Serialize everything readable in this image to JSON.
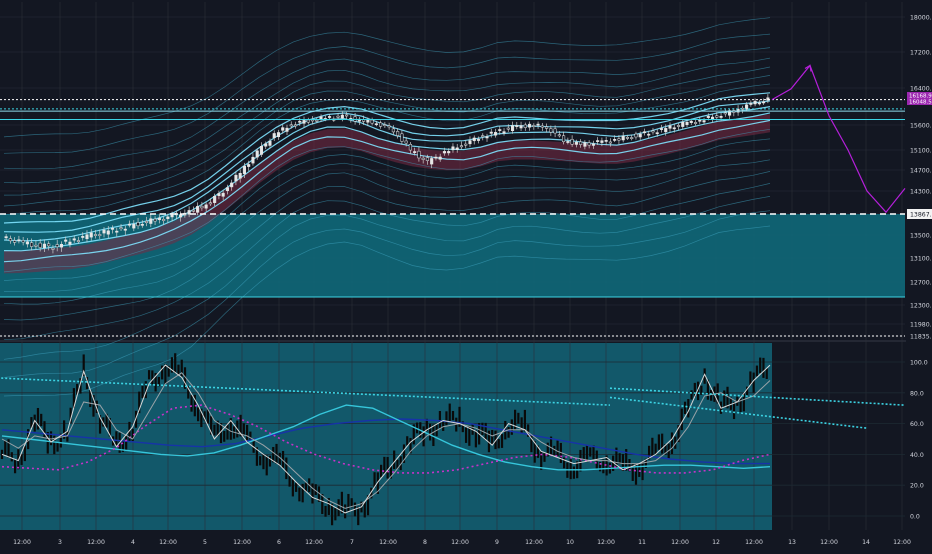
{
  "colors": {
    "background": "#131722",
    "grid": "#2a2e39",
    "axis_text": "#d1d4dc",
    "zone_fill": "#0f6777",
    "osc_zone_fill": "#12586a",
    "band": "#3fa6c3",
    "band_bright": "#7fe3ff",
    "cloud": "#7a2a44",
    "price_label": "#9c27b0",
    "forecast": "#b41fd9",
    "candle_body": "#e6e6e6",
    "candle_wick": "#cfcfcf",
    "stoch_white": "#d8d8d8",
    "stoch_black": "#0a0a0a",
    "ma_cyan": "#36c6db",
    "ma_blue": "#1733a8",
    "ma_magenta": "#c533c9",
    "trend_dotted": "#3cd3e3"
  },
  "chart_data": [
    {
      "type": "line",
      "panel": "price",
      "x_tick_labels": [
        "12:00",
        "3",
        "12:00",
        "4",
        "12:00",
        "5",
        "12:00",
        "6",
        "12:00",
        "7",
        "12:00",
        "8",
        "12:00",
        "9",
        "12:00",
        "10",
        "12:00",
        "11",
        "12:00",
        "12",
        "12:00",
        "13",
        "12:00",
        "14",
        "12:00"
      ],
      "y_tick_labels": [
        "18000.00",
        "17200.00",
        "16400.00",
        "15600.00",
        "15100.00",
        "14700.00",
        "14300.00",
        "13867.00",
        "13500.00",
        "13100.00",
        "12700.00",
        "12300.00",
        "11980.00",
        "11835.00"
      ],
      "ylim": [
        11800,
        18150
      ],
      "price_labels": [
        "16168.99",
        "16048.59"
      ],
      "horizontal_levels": [
        {
          "value": 16148,
          "style": "dotted",
          "color": "#ffffff"
        },
        {
          "value": 15950,
          "style": "dotted",
          "color": "#3cd3e3"
        },
        {
          "value": 15900,
          "style": "solid",
          "color": "#8fdcec"
        },
        {
          "value": 15720,
          "style": "solid",
          "color": "#3cd3e3"
        },
        {
          "value": 13867,
          "style": "dashed",
          "color": "#ffffff"
        },
        {
          "value": 12440,
          "style": "solid",
          "color": "#3cd3e3"
        },
        {
          "value": 11835,
          "style": "dotted",
          "color": "#ffffff"
        }
      ],
      "shaded_zone": [
        12440,
        13867
      ],
      "series": [
        {
          "role": "price",
          "values": [
            13450,
            13380,
            13320,
            13300,
            13400,
            13480,
            13550,
            13620,
            13700,
            13760,
            13820,
            13900,
            14050,
            14300,
            14650,
            15050,
            15400,
            15620,
            15700,
            15750,
            15780,
            15700,
            15650,
            15500,
            15100,
            14850,
            15050,
            15200,
            15350,
            15450,
            15550,
            15600,
            15560,
            15300,
            15200,
            15250,
            15300,
            15380,
            15450,
            15520,
            15620,
            15700,
            15800,
            15900,
            16050,
            16150
          ]
        },
        {
          "role": "forecast",
          "values": [
            16150,
            16380,
            16900,
            15800,
            15100,
            14300,
            13900,
            14350
          ]
        }
      ]
    },
    {
      "type": "line",
      "panel": "oscillator",
      "y_tick_labels": [
        "100.0",
        "80.0",
        "60.0",
        "40.0",
        "20.0",
        "0.0"
      ],
      "ylim": [
        -5,
        110
      ],
      "trendlines": [
        {
          "from": [
            -1,
            90
          ],
          "to": [
            16,
            72
          ]
        },
        {
          "from": [
            16,
            83
          ],
          "to": [
            24,
            72
          ]
        },
        {
          "from": [
            16,
            77
          ],
          "to": [
            23,
            57
          ]
        }
      ],
      "series": [
        {
          "role": "stochastic_fast",
          "values": [
            40,
            36,
            62,
            48,
            55,
            94,
            64,
            45,
            58,
            86,
            98,
            90,
            72,
            50,
            62,
            48,
            40,
            33,
            22,
            12,
            8,
            2,
            6,
            22,
            35,
            48,
            56,
            62,
            60,
            55,
            46,
            60,
            56,
            42,
            38,
            34,
            36,
            38,
            30,
            34,
            40,
            50,
            68,
            92,
            70,
            74,
            88,
            98
          ]
        },
        {
          "role": "stochastic_slow",
          "values": [
            50,
            44,
            52,
            50,
            52,
            74,
            72,
            56,
            50,
            68,
            86,
            93,
            80,
            62,
            55,
            52,
            46,
            38,
            28,
            18,
            10,
            5,
            8,
            16,
            28,
            42,
            52,
            58,
            60,
            57,
            52,
            56,
            56,
            48,
            42,
            38,
            36,
            36,
            34,
            34,
            36,
            44,
            58,
            78,
            80,
            74,
            78,
            88
          ]
        },
        {
          "role": "ma_cyan",
          "values": [
            52,
            50,
            48,
            46,
            44,
            42,
            40,
            39,
            41,
            46,
            52,
            58,
            66,
            72,
            70,
            62,
            54,
            46,
            40,
            35,
            32,
            30,
            30,
            31,
            32,
            33,
            33,
            32,
            31,
            32
          ]
        },
        {
          "role": "ma_blue",
          "values": [
            56,
            54,
            52,
            50,
            48,
            46,
            45,
            47,
            52,
            57,
            60,
            62,
            63,
            62,
            60,
            56,
            52,
            48,
            44,
            40,
            37,
            35,
            34,
            34
          ]
        },
        {
          "role": "ma_magenta",
          "values": [
            32,
            31,
            30,
            35,
            44,
            58,
            70,
            72,
            66,
            58,
            48,
            40,
            34,
            30,
            28,
            28,
            30,
            34,
            38,
            40,
            38,
            34,
            30,
            28,
            28,
            30,
            36,
            40
          ]
        }
      ]
    }
  ]
}
